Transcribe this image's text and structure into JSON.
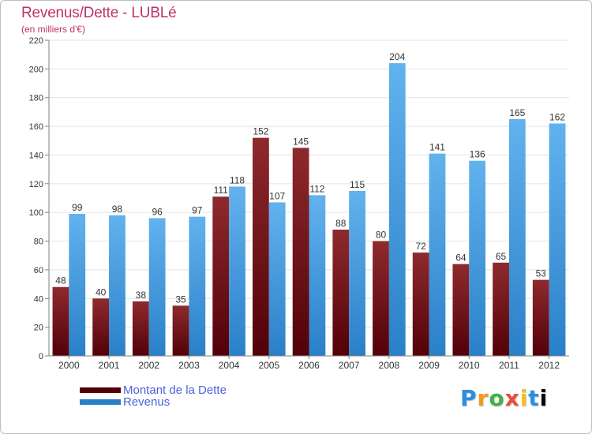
{
  "header": {
    "title": "Revenus/Dette - LUBLé",
    "subtitle": "(en milliers d'€)"
  },
  "legend": {
    "dette_label": "Montant de la Dette",
    "revenus_label": "Revenus"
  },
  "brand": {
    "name": "Proxiti"
  },
  "colors": {
    "dette_top": "#8e2a2e",
    "dette_bottom": "#520008",
    "revenus_top": "#62b2ee",
    "revenus_bottom": "#2a80c8",
    "grid": "#e4e4e4",
    "axis": "#808080",
    "text": "#333333"
  },
  "chart_data": {
    "type": "bar",
    "title": "Revenus/Dette - LUBLé",
    "subtitle": "(en milliers d'€)",
    "xlabel": "",
    "ylabel": "",
    "ylim": [
      0,
      220
    ],
    "yticks": [
      0,
      20,
      40,
      60,
      80,
      100,
      120,
      140,
      160,
      180,
      200,
      220
    ],
    "grid": true,
    "legend_position": "bottom-left",
    "categories": [
      "2000",
      "2001",
      "2002",
      "2003",
      "2004",
      "2005",
      "2006",
      "2007",
      "2008",
      "2009",
      "2010",
      "2011",
      "2012"
    ],
    "series": [
      {
        "name": "Montant de la Dette",
        "values": [
          48,
          40,
          38,
          35,
          111,
          152,
          145,
          88,
          80,
          72,
          64,
          65,
          53
        ]
      },
      {
        "name": "Revenus",
        "values": [
          99,
          98,
          96,
          97,
          118,
          107,
          112,
          115,
          204,
          141,
          136,
          165,
          162
        ]
      }
    ]
  }
}
